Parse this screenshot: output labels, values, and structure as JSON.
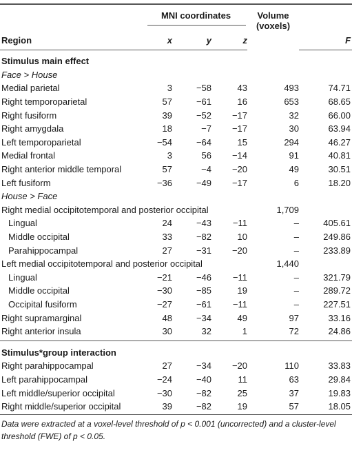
{
  "table": {
    "header": {
      "group": "MNI coordinates",
      "region": "Region",
      "x": "x",
      "y": "y",
      "z": "z",
      "volume": "Volume (voxels)",
      "f": "F"
    },
    "sections": [
      {
        "title": "Stimulus main effect",
        "groups": [
          {
            "title": "Face > House",
            "rows": [
              {
                "label": "Medial parietal",
                "x": "3",
                "y": "−58",
                "z": "43",
                "volume": "493",
                "f": "74.71"
              },
              {
                "label": "Right temporoparietal",
                "x": "57",
                "y": "−61",
                "z": "16",
                "volume": "653",
                "f": "68.65"
              },
              {
                "label": "Right fusiform",
                "x": "39",
                "y": "−52",
                "z": "−17",
                "volume": "32",
                "f": "66.00"
              },
              {
                "label": "Right amygdala",
                "x": "18",
                "y": "−7",
                "z": "−17",
                "volume": "30",
                "f": "63.94"
              },
              {
                "label": "Left temporoparietal",
                "x": "−54",
                "y": "−64",
                "z": "15",
                "volume": "294",
                "f": "46.27"
              },
              {
                "label": "Medial frontal",
                "x": "3",
                "y": "56",
                "z": "−14",
                "volume": "91",
                "f": "40.81"
              },
              {
                "label": "Right anterior middle temporal",
                "x": "57",
                "y": "−4",
                "z": "−20",
                "volume": "49",
                "f": "30.51"
              },
              {
                "label": "Left fusiform",
                "x": "−36",
                "y": "−49",
                "z": "−17",
                "volume": "6",
                "f": "18.20"
              }
            ]
          },
          {
            "title": "House > Face",
            "rows": [
              {
                "label": "Right medial occipitotemporal and posterior occipital",
                "volume": "1,709",
                "children": [
                  {
                    "label": "Lingual",
                    "x": "24",
                    "y": "−43",
                    "z": "−11",
                    "volume": "–",
                    "f": "405.61"
                  },
                  {
                    "label": "Middle occipital",
                    "x": "33",
                    "y": "−82",
                    "z": "10",
                    "volume": "–",
                    "f": "249.86"
                  },
                  {
                    "label": "Parahippocampal",
                    "x": "27",
                    "y": "−31",
                    "z": "−20",
                    "volume": "–",
                    "f": "233.89"
                  }
                ]
              },
              {
                "label": "Left medial occipitotemporal and posterior occipital",
                "volume": "1,440",
                "children": [
                  {
                    "label": "Lingual",
                    "x": "−21",
                    "y": "−46",
                    "z": "−11",
                    "volume": "–",
                    "f": "321.79"
                  },
                  {
                    "label": "Middle occipital",
                    "x": "−30",
                    "y": "−85",
                    "z": "19",
                    "volume": "–",
                    "f": "289.72"
                  },
                  {
                    "label": "Occipital fusiform",
                    "x": "−27",
                    "y": "−61",
                    "z": "−11",
                    "volume": "–",
                    "f": "227.51"
                  }
                ]
              },
              {
                "label": "Right supramarginal",
                "x": "48",
                "y": "−34",
                "z": "49",
                "volume": "97",
                "f": "33.16"
              },
              {
                "label": "Right anterior insula",
                "x": "30",
                "y": "32",
                "z": "1",
                "volume": "72",
                "f": "24.86"
              }
            ]
          }
        ]
      },
      {
        "title": "Stimulus*group interaction",
        "groups": [
          {
            "rows": [
              {
                "label": "Right parahippocampal",
                "x": "27",
                "y": "−34",
                "z": "−20",
                "volume": "110",
                "f": "33.83"
              },
              {
                "label": "Left parahippocampal",
                "x": "−24",
                "y": "−40",
                "z": "11",
                "volume": "63",
                "f": "29.84"
              },
              {
                "label": "Left middle/superior occipital",
                "x": "−30",
                "y": "−82",
                "z": "25",
                "volume": "37",
                "f": "19.83"
              },
              {
                "label": "Right middle/superior occipital",
                "x": "39",
                "y": "−82",
                "z": "19",
                "volume": "57",
                "f": "18.05"
              }
            ]
          }
        ]
      }
    ],
    "footnote": "Data were extracted at a voxel-level threshold of p < 0.001 (uncorrected) and a cluster-level threshold (FWE) of p < 0.05."
  }
}
